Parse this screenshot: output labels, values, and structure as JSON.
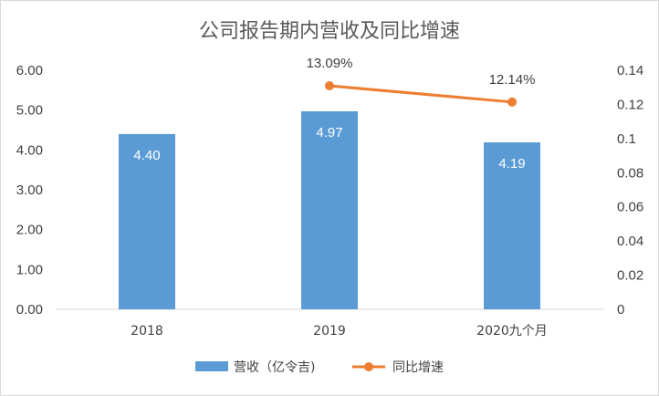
{
  "chart_data": {
    "type": "bar",
    "title": "公司报告期内营收及同比增速",
    "categories": [
      "2018",
      "2019",
      "2020九个月"
    ],
    "series": [
      {
        "name": "营收（亿令吉)",
        "type": "bar",
        "axis": "left",
        "color": "#5b9bd5",
        "values": [
          4.4,
          4.97,
          4.19
        ],
        "labels": [
          "4.40",
          "4.97",
          "4.19"
        ]
      },
      {
        "name": "同比增速",
        "type": "line",
        "axis": "right",
        "color": "#ed7d31",
        "values": [
          null,
          0.1309,
          0.1214
        ],
        "labels": [
          "",
          "13.09%",
          "12.14%"
        ]
      }
    ],
    "y_left": {
      "min": 0,
      "max": 6,
      "ticks": [
        0,
        1,
        2,
        3,
        4,
        5,
        6
      ],
      "tick_labels": [
        "0.00",
        "1.00",
        "2.00",
        "3.00",
        "4.00",
        "5.00",
        "6.00"
      ]
    },
    "y_right": {
      "min": 0,
      "max": 0.14,
      "ticks": [
        0,
        0.02,
        0.04,
        0.06,
        0.08,
        0.1,
        0.12,
        0.14
      ],
      "tick_labels": [
        "0",
        "0.02",
        "0.04",
        "0.06",
        "0.08",
        "0.1",
        "0.12",
        "0.14"
      ]
    },
    "legend_position": "bottom",
    "grid": false
  }
}
